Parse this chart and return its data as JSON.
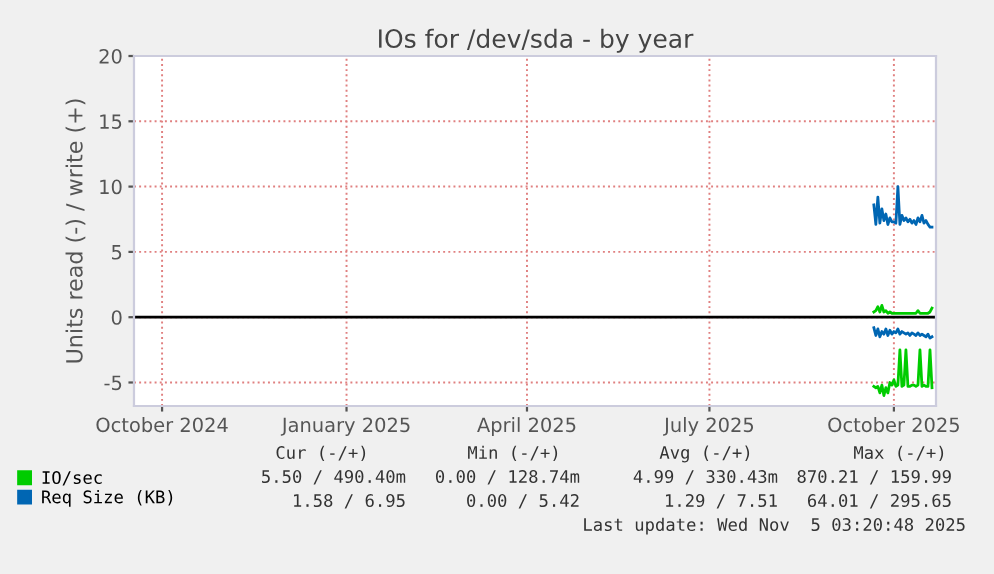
{
  "chart_data": {
    "type": "line",
    "title": "IOs for /dev/sda - by year",
    "ylabel": "Units read (-) / write (+)",
    "x": [
      "2025-10-05",
      "2025-10-06",
      "2025-10-07",
      "2025-10-08",
      "2025-10-09",
      "2025-10-10",
      "2025-10-11",
      "2025-10-12",
      "2025-10-13",
      "2025-10-14",
      "2025-10-15",
      "2025-10-16",
      "2025-10-17",
      "2025-10-18",
      "2025-10-19",
      "2025-10-20",
      "2025-10-21",
      "2025-10-22",
      "2025-10-23",
      "2025-10-24",
      "2025-10-25",
      "2025-10-26",
      "2025-10-27",
      "2025-10-28",
      "2025-10-29",
      "2025-10-30",
      "2025-10-31",
      "2025-11-01",
      "2025-11-02",
      "2025-11-03"
    ],
    "series": [
      {
        "name": "IO/sec",
        "color": "#00cc00",
        "values": [
          0.4,
          0.5,
          0.8,
          0.4,
          0.9,
          0.4,
          0.5,
          0.3,
          0.4,
          0.3,
          0.3,
          0.3,
          0.3,
          0.3,
          0.3,
          0.3,
          0.3,
          0.3,
          0.3,
          0.3,
          0.3,
          0.3,
          0.5,
          0.3,
          0.3,
          0.3,
          0.3,
          0.3,
          0.4,
          0.7
        ]
      },
      {
        "color": "#00cc00",
        "values": [
          -5.3,
          -5.4,
          -5.3,
          -5.8,
          -5.2,
          -6.0,
          -5.4,
          -5.8,
          -5.0,
          -5.2,
          -4.8,
          -5.3,
          -5.2,
          -2.5,
          -5.3,
          -5.2,
          -2.5,
          -5.3,
          -5.3,
          -5.2,
          -5.2,
          -5.3,
          -5.2,
          -2.5,
          -5.3,
          -5.2,
          -5.3,
          -5.3,
          -2.5,
          -5.4
        ]
      },
      {
        "name": "Req Size (KB)",
        "color": "#0066b3",
        "values": [
          8.6,
          7.1,
          9.2,
          7.2,
          8.3,
          7.4,
          7.9,
          7.1,
          7.6,
          7.3,
          7.3,
          7.2,
          10.0,
          7.1,
          7.8,
          7.4,
          7.6,
          7.3,
          7.5,
          7.2,
          7.4,
          7.1,
          7.6,
          7.3,
          7.8,
          7.2,
          7.4,
          7.1,
          6.9,
          6.9
        ]
      },
      {
        "color": "#0066b3",
        "values": [
          -0.8,
          -1.4,
          -0.9,
          -1.5,
          -1.1,
          -1.3,
          -0.9,
          -1.4,
          -1.0,
          -1.3,
          -1.1,
          -1.2,
          -0.9,
          -1.3,
          -1.1,
          -1.2,
          -1.3,
          -1.2,
          -1.4,
          -1.2,
          -1.3,
          -1.4,
          -1.2,
          -1.4,
          -1.3,
          -1.4,
          -1.5,
          -1.3,
          -1.6,
          -1.5
        ]
      }
    ],
    "xlim": [
      "2024-10-01",
      "2025-11-05"
    ],
    "xticks": [
      {
        "value": "2024-10-15",
        "label": "October 2024"
      },
      {
        "value": "2025-01-15",
        "label": "January 2025"
      },
      {
        "value": "2025-04-15",
        "label": "April 2025"
      },
      {
        "value": "2025-07-15",
        "label": "July 2025"
      },
      {
        "value": "2025-10-15",
        "label": "October 2025"
      }
    ],
    "ylim": [
      -6.8,
      20
    ],
    "yticks": [
      -5,
      0,
      5,
      10,
      15,
      20
    ],
    "ref_lines": [
      {
        "axis": "y",
        "value": 0,
        "color": "#000000"
      }
    ],
    "grid": true,
    "legend": "bottom left",
    "annotations": [
      "Cur (-/+)",
      "Min (-/+)",
      "Avg (-/+)",
      "Max (-/+)",
      "5.50 / 490.40m",
      "0.00 / 128.74m",
      "4.99 / 330.43m",
      "870.21 / 159.99",
      "1.58 / 6.95",
      "0.00 / 5.42",
      "1.29 / 7.51",
      "64.01 / 295.65",
      "Last update: Wed Nov  5 03:20:48 2025"
    ]
  }
}
